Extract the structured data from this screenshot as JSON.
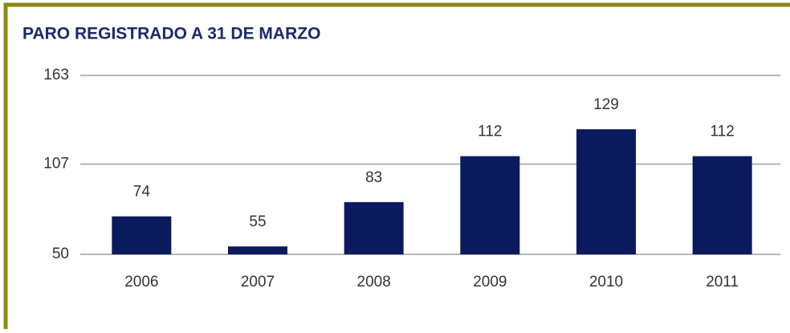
{
  "chart_data": {
    "type": "bar",
    "title": "PARO REGISTRADO A 31 DE MARZO",
    "categories": [
      "2006",
      "2007",
      "2008",
      "2009",
      "2010",
      "2011"
    ],
    "values": [
      74,
      55,
      83,
      112,
      129,
      112
    ],
    "color": "#0a1a5c",
    "ylim": [
      50,
      163
    ],
    "yticks": [
      50,
      107,
      163
    ],
    "grid": true
  }
}
